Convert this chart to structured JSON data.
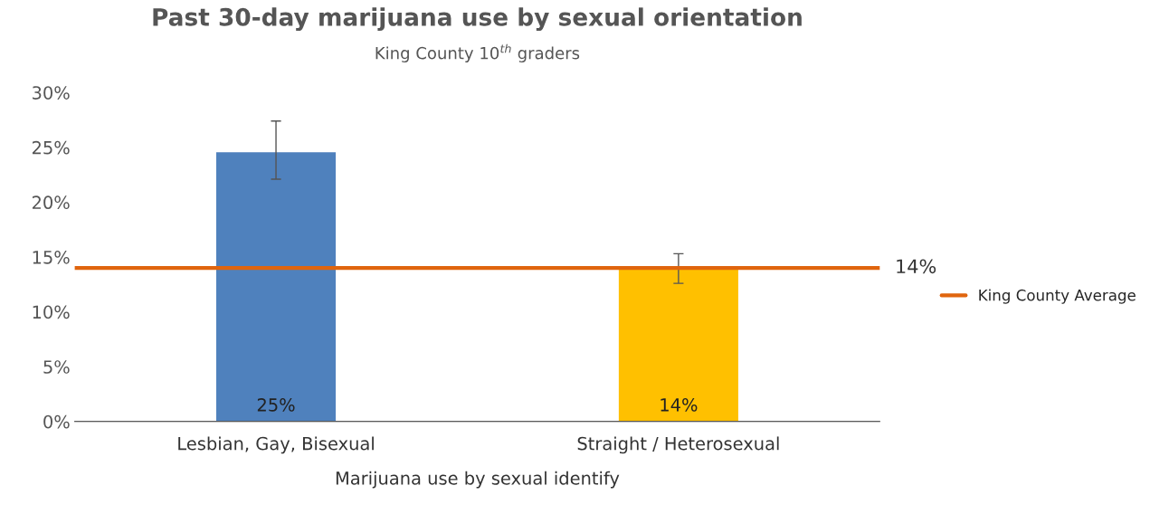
{
  "chart_data": {
    "type": "bar",
    "title": "Past 30-day marijuana use by sexual orientation",
    "subtitle": "King County 10$^{th}$ graders",
    "xlabel": "Marijuana use by sexual identify",
    "categories": [
      "Lesbian, Gay, Bisexual",
      "Straight / Heterosexual"
    ],
    "values": [
      24.6,
      14
    ],
    "colors": [
      "#4f81bd",
      "#ffc000"
    ],
    "errors": [
      [
        22.1,
        27.4
      ],
      [
        12.6,
        15.3
      ]
    ],
    "value_labels": [
      "25%",
      "14%"
    ],
    "ylim": [
      0,
      30
    ],
    "yticks": [
      {
        "value": 0,
        "label": "0%"
      },
      {
        "value": 5,
        "label": "5%"
      },
      {
        "value": 10,
        "label": "10%"
      },
      {
        "value": 15,
        "label": "15%"
      },
      {
        "value": 20,
        "label": "20%"
      },
      {
        "value": 25,
        "label": "25%"
      },
      {
        "value": 30,
        "label": "30%"
      }
    ],
    "ref_lines": [
      {
        "axis": "y",
        "value": 14,
        "label": "King County Average",
        "color": "#e0650e"
      }
    ],
    "annotations": [
      "14%"
    ],
    "grid": false,
    "legend": "right"
  }
}
